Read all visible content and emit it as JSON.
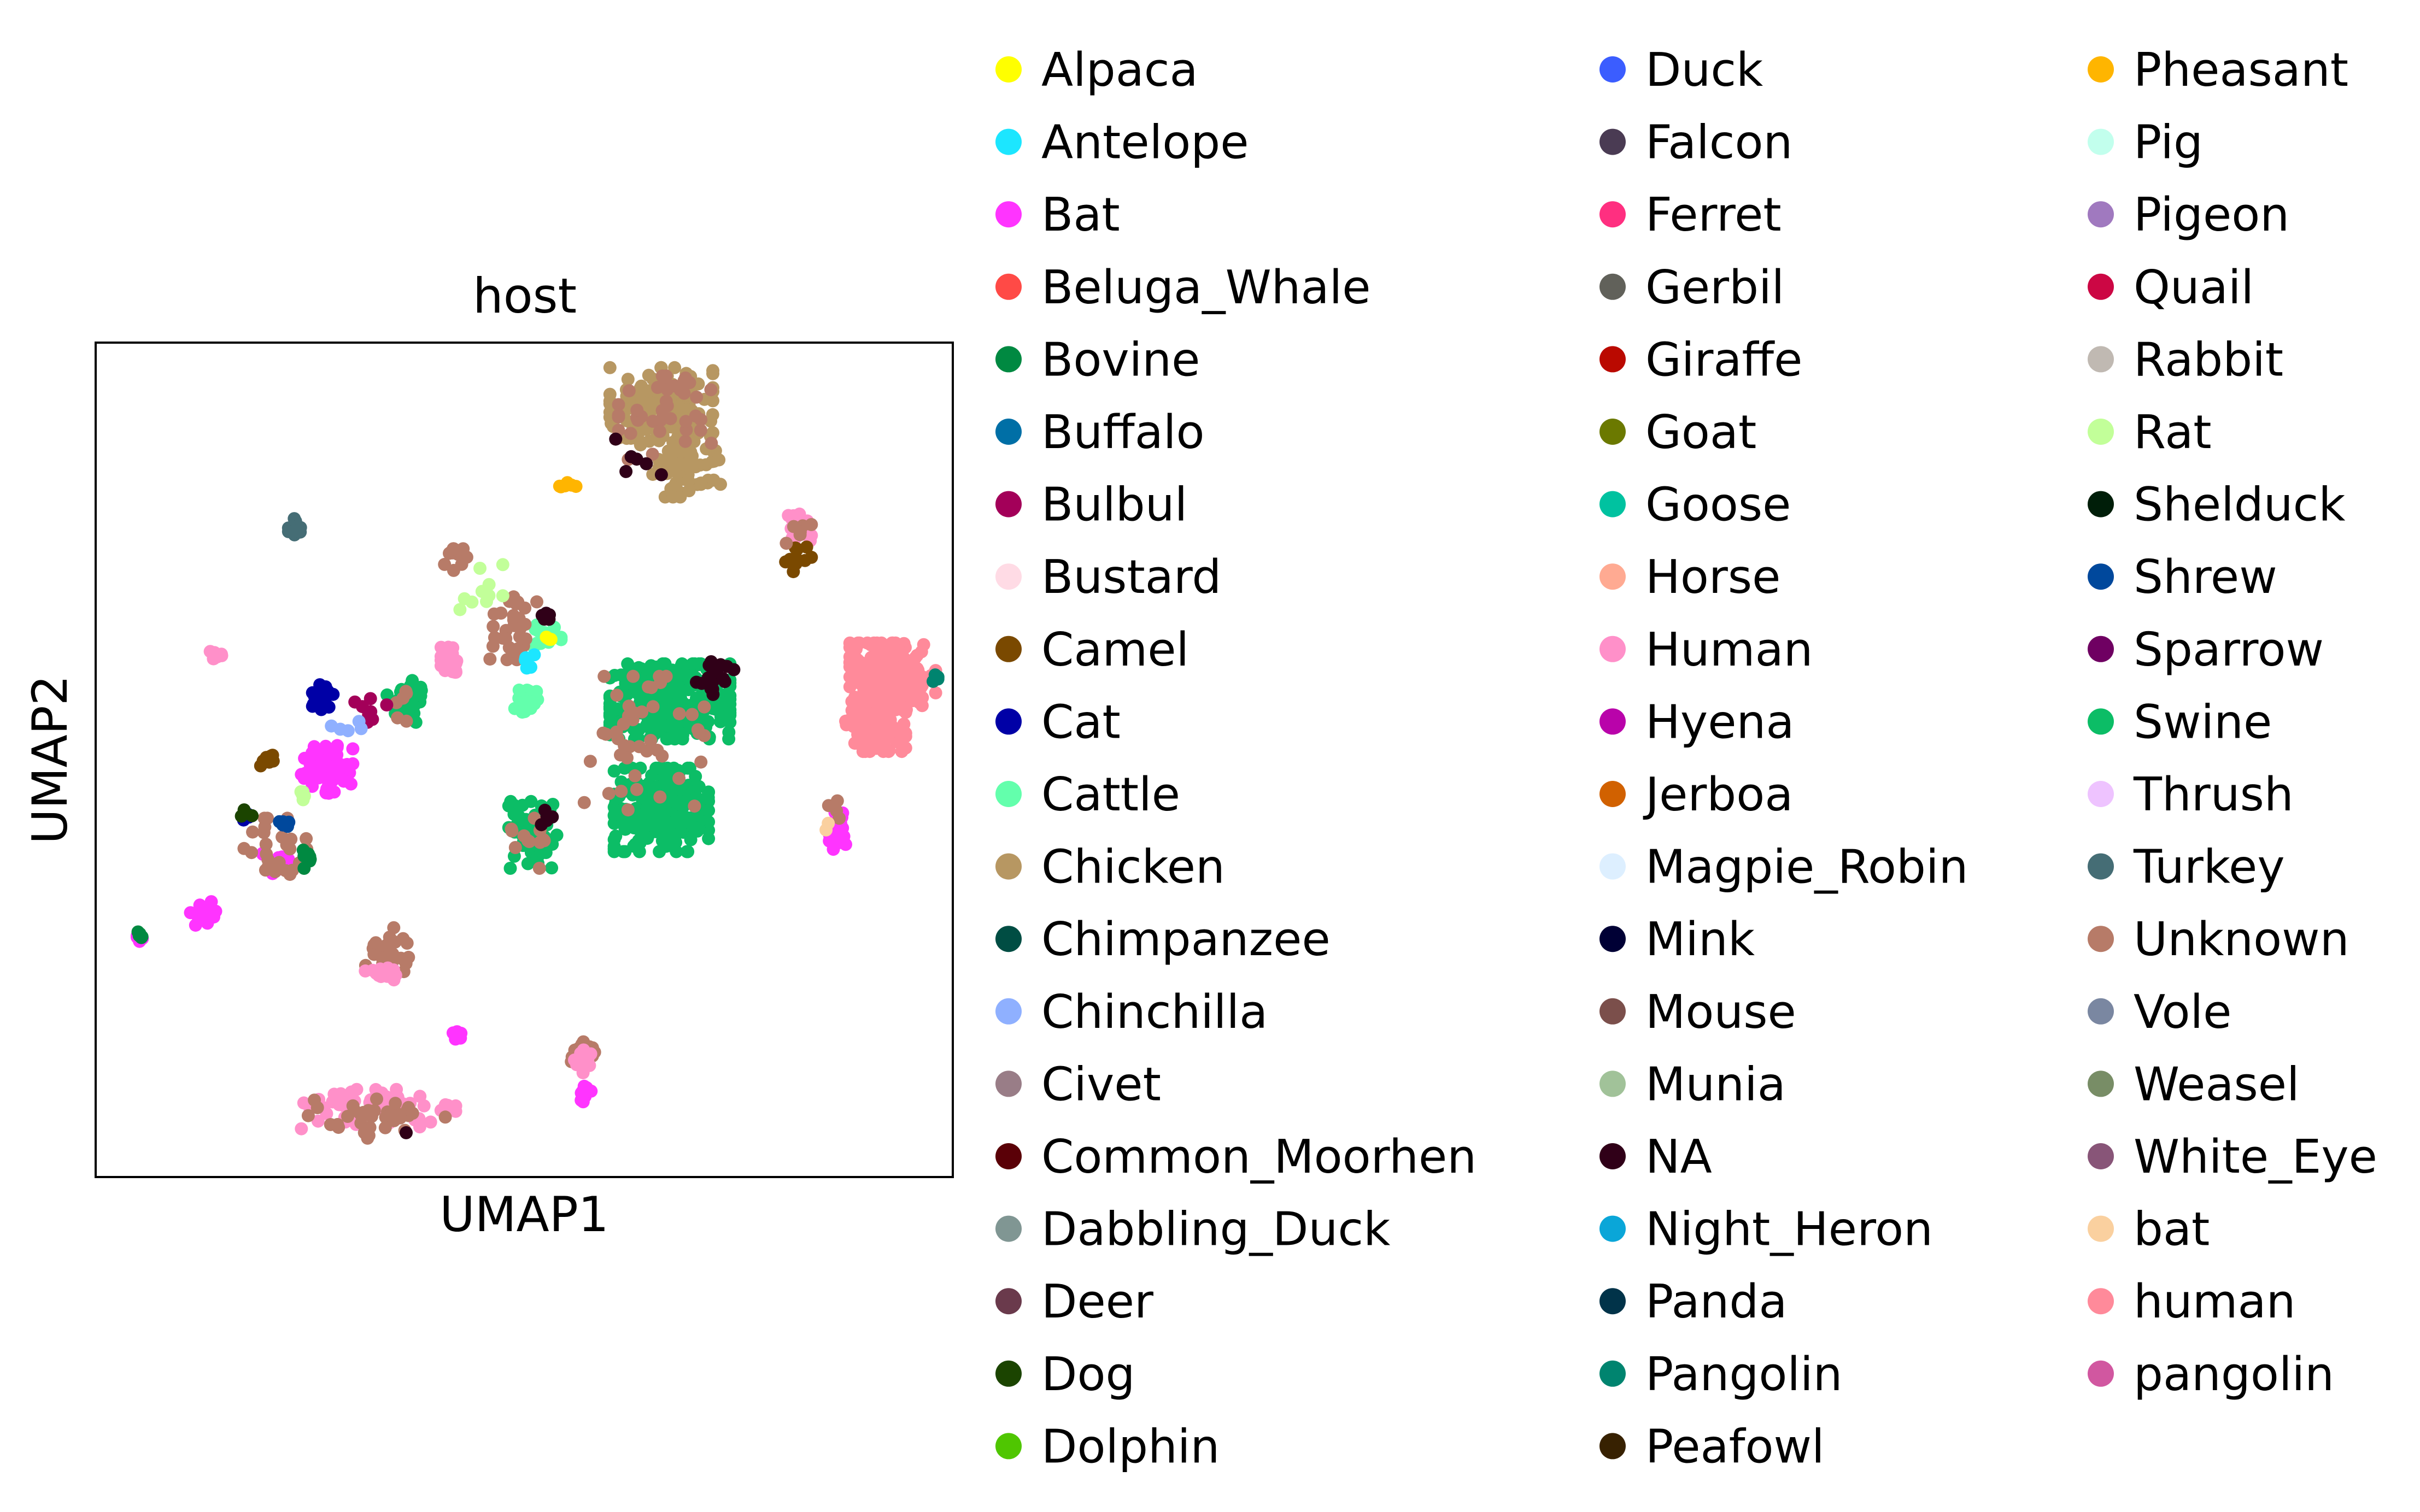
{
  "chart_data": {
    "type": "scatter",
    "title": "host",
    "xlabel": "UMAP1",
    "ylabel": "UMAP2",
    "xlim": [
      0,
      100
    ],
    "ylim": [
      0,
      100
    ],
    "grid": false,
    "ticks": "none",
    "legend_position": "right, outside plot, 3 columns",
    "categories": [
      {
        "name": "Alpaca",
        "color": "#ffff00"
      },
      {
        "name": "Antelope",
        "color": "#1ce6ff"
      },
      {
        "name": "Bat",
        "color": "#ff34ff"
      },
      {
        "name": "Beluga_Whale",
        "color": "#ff4a46"
      },
      {
        "name": "Bovine",
        "color": "#008941"
      },
      {
        "name": "Buffalo",
        "color": "#006fa6"
      },
      {
        "name": "Bulbul",
        "color": "#a30059"
      },
      {
        "name": "Bustard",
        "color": "#ffdbe5"
      },
      {
        "name": "Camel",
        "color": "#7a4900"
      },
      {
        "name": "Cat",
        "color": "#0000a6"
      },
      {
        "name": "Cattle",
        "color": "#63ffac"
      },
      {
        "name": "Chicken",
        "color": "#b79762"
      },
      {
        "name": "Chimpanzee",
        "color": "#004d43"
      },
      {
        "name": "Chinchilla",
        "color": "#8fb0ff"
      },
      {
        "name": "Civet",
        "color": "#997d87"
      },
      {
        "name": "Common_Moorhen",
        "color": "#5a0007"
      },
      {
        "name": "Dabbling_Duck",
        "color": "#809693"
      },
      {
        "name": "Deer",
        "color": "#6a3a4c"
      },
      {
        "name": "Dog",
        "color": "#1b4400"
      },
      {
        "name": "Dolphin",
        "color": "#4fc601"
      },
      {
        "name": "Duck",
        "color": "#3b5dff"
      },
      {
        "name": "Falcon",
        "color": "#4a3b53"
      },
      {
        "name": "Ferret",
        "color": "#ff2f80"
      },
      {
        "name": "Gerbil",
        "color": "#61615a"
      },
      {
        "name": "Giraffe",
        "color": "#ba0900"
      },
      {
        "name": "Goat",
        "color": "#6b7900"
      },
      {
        "name": "Goose",
        "color": "#00c2a0"
      },
      {
        "name": "Horse",
        "color": "#ffaa92"
      },
      {
        "name": "Human",
        "color": "#ff90c9"
      },
      {
        "name": "Hyena",
        "color": "#b903aa"
      },
      {
        "name": "Jerboa",
        "color": "#d16100"
      },
      {
        "name": "Magpie_Robin",
        "color": "#ddefff"
      },
      {
        "name": "Mink",
        "color": "#000035"
      },
      {
        "name": "Mouse",
        "color": "#7b4f4b"
      },
      {
        "name": "Munia",
        "color": "#a1c299"
      },
      {
        "name": "NA",
        "color": "#300018"
      },
      {
        "name": "Night_Heron",
        "color": "#0aa6d8"
      },
      {
        "name": "Panda",
        "color": "#013349"
      },
      {
        "name": "Pangolin",
        "color": "#00846f"
      },
      {
        "name": "Peafowl",
        "color": "#372101"
      },
      {
        "name": "Pheasant",
        "color": "#ffb500"
      },
      {
        "name": "Pig",
        "color": "#c2ffed"
      },
      {
        "name": "Pigeon",
        "color": "#a079bf"
      },
      {
        "name": "Quail",
        "color": "#cc0744"
      },
      {
        "name": "Rabbit",
        "color": "#c0b9b2"
      },
      {
        "name": "Rat",
        "color": "#c2ff99"
      },
      {
        "name": "Shelduck",
        "color": "#001e09"
      },
      {
        "name": "Shrew",
        "color": "#00489c"
      },
      {
        "name": "Sparrow",
        "color": "#6f0062"
      },
      {
        "name": "Swine",
        "color": "#0cbd66"
      },
      {
        "name": "Thrush",
        "color": "#eec3ff"
      },
      {
        "name": "Turkey",
        "color": "#456d75"
      },
      {
        "name": "Unknown",
        "color": "#b77b68"
      },
      {
        "name": "Vole",
        "color": "#7a87a1"
      },
      {
        "name": "Weasel",
        "color": "#788d66"
      },
      {
        "name": "White_Eye",
        "color": "#885578"
      },
      {
        "name": "bat",
        "color": "#fad09f"
      },
      {
        "name": "human",
        "color": "#ff8a9a"
      },
      {
        "name": "pangolin",
        "color": "#d157a0"
      }
    ],
    "clusters": [
      {
        "category": "Chicken",
        "center": [
          66,
          92
        ],
        "spread": [
          6,
          5
        ],
        "count": 150
      },
      {
        "category": "Chicken",
        "center": [
          69,
          85
        ],
        "spread": [
          4,
          3.5
        ],
        "count": 60
      },
      {
        "category": "Unknown",
        "center": [
          67,
          91
        ],
        "spread": [
          6,
          5
        ],
        "count": 40
      },
      {
        "category": "Pheasant",
        "center": [
          55,
          83
        ],
        "spread": [
          1.2,
          0.8
        ],
        "count": 6
      },
      {
        "category": "NA",
        "center": [
          63,
          87
        ],
        "spread": [
          3,
          3
        ],
        "count": 6
      },
      {
        "category": "Human",
        "center": [
          82,
          78
        ],
        "spread": [
          1.5,
          2
        ],
        "count": 18
      },
      {
        "category": "Camel",
        "center": [
          82,
          74
        ],
        "spread": [
          1.5,
          1.5
        ],
        "count": 12
      },
      {
        "category": "Unknown",
        "center": [
          82,
          77
        ],
        "spread": [
          1.5,
          2
        ],
        "count": 6
      },
      {
        "category": "Turkey",
        "center": [
          23.5,
          78
        ],
        "spread": [
          1,
          1.4
        ],
        "count": 14
      },
      {
        "category": "human",
        "center": [
          93,
          60
        ],
        "spread": [
          5,
          4
        ],
        "count": 260
      },
      {
        "category": "human",
        "center": [
          91,
          54
        ],
        "spread": [
          3.5,
          3
        ],
        "count": 90
      },
      {
        "category": "Pangolin",
        "center": [
          98,
          60
        ],
        "spread": [
          0.6,
          0.8
        ],
        "count": 4
      },
      {
        "category": "Bat",
        "center": [
          86.5,
          41.5
        ],
        "spread": [
          1,
          2.5
        ],
        "count": 30
      },
      {
        "category": "Unknown",
        "center": [
          86.5,
          44
        ],
        "spread": [
          1,
          1.5
        ],
        "count": 4
      },
      {
        "category": "bat",
        "center": [
          85.5,
          42
        ],
        "spread": [
          0.4,
          0.4
        ],
        "count": 2
      },
      {
        "category": "Swine",
        "center": [
          67,
          57
        ],
        "spread": [
          7,
          4.5
        ],
        "count": 320
      },
      {
        "category": "Swine",
        "center": [
          66,
          44
        ],
        "spread": [
          5.5,
          5
        ],
        "count": 230
      },
      {
        "category": "Swine",
        "center": [
          51,
          41
        ],
        "spread": [
          2.8,
          4
        ],
        "count": 65
      },
      {
        "category": "Unknown",
        "center": [
          64,
          52
        ],
        "spread": [
          7,
          8
        ],
        "count": 45
      },
      {
        "category": "NA",
        "center": [
          72,
          60
        ],
        "spread": [
          2.5,
          2.5
        ],
        "count": 16
      },
      {
        "category": "Unknown",
        "center": [
          51,
          40
        ],
        "spread": [
          2.5,
          3
        ],
        "count": 12
      },
      {
        "category": "NA",
        "center": [
          53,
          43
        ],
        "spread": [
          1,
          1
        ],
        "count": 5
      },
      {
        "category": "Cattle",
        "center": [
          50,
          57
        ],
        "spread": [
          1.6,
          1.5
        ],
        "count": 25
      },
      {
        "category": "Cattle",
        "center": [
          52.5,
          65
        ],
        "spread": [
          1.8,
          1.5
        ],
        "count": 16
      },
      {
        "category": "Unknown",
        "center": [
          49,
          66
        ],
        "spread": [
          3,
          4
        ],
        "count": 30
      },
      {
        "category": "Rat",
        "center": [
          45,
          71
        ],
        "spread": [
          2.5,
          3
        ],
        "count": 10
      },
      {
        "category": "Alpaca",
        "center": [
          53,
          64.5
        ],
        "spread": [
          1,
          1
        ],
        "count": 4
      },
      {
        "category": "Antelope",
        "center": [
          51,
          62
        ],
        "spread": [
          1.2,
          1
        ],
        "count": 5
      },
      {
        "category": "NA",
        "center": [
          53,
          67
        ],
        "spread": [
          1.5,
          1.5
        ],
        "count": 5
      },
      {
        "category": "Human",
        "center": [
          41.5,
          62
        ],
        "spread": [
          1.2,
          1.5
        ],
        "count": 20
      },
      {
        "category": "Unknown",
        "center": [
          42,
          74
        ],
        "spread": [
          1.3,
          1.3
        ],
        "count": 12
      },
      {
        "category": "Swine",
        "center": [
          36,
          57
        ],
        "spread": [
          2,
          2.5
        ],
        "count": 35
      },
      {
        "category": "Unknown",
        "center": [
          36,
          57
        ],
        "spread": [
          2,
          2.5
        ],
        "count": 6
      },
      {
        "category": "Cat",
        "center": [
          26.5,
          57.5
        ],
        "spread": [
          1.2,
          1.5
        ],
        "count": 20
      },
      {
        "category": "Bulbul",
        "center": [
          32,
          56
        ],
        "spread": [
          2.5,
          1.5
        ],
        "count": 8
      },
      {
        "category": "Chinchilla",
        "center": [
          30,
          54
        ],
        "spread": [
          2.5,
          1.5
        ],
        "count": 5
      },
      {
        "category": "Bat",
        "center": [
          27,
          49
        ],
        "spread": [
          3,
          3
        ],
        "count": 60
      },
      {
        "category": "Bat",
        "center": [
          21.5,
          37.5
        ],
        "spread": [
          2,
          1.5
        ],
        "count": 15
      },
      {
        "category": "Bat",
        "center": [
          12.5,
          31.5
        ],
        "spread": [
          1.5,
          1.5
        ],
        "count": 18
      },
      {
        "category": "Bat",
        "center": [
          5,
          28.5
        ],
        "spread": [
          0.6,
          0.6
        ],
        "count": 6
      },
      {
        "category": "Bovine",
        "center": [
          5.3,
          29.2
        ],
        "spread": [
          0.5,
          0.5
        ],
        "count": 5
      },
      {
        "category": "Unknown",
        "center": [
          21,
          39
        ],
        "spread": [
          4,
          4
        ],
        "count": 25
      },
      {
        "category": "Camel",
        "center": [
          20,
          50
        ],
        "spread": [
          1,
          1
        ],
        "count": 8
      },
      {
        "category": "Bovine",
        "center": [
          24.5,
          38.5
        ],
        "spread": [
          1,
          1.5
        ],
        "count": 8
      },
      {
        "category": "Shrew",
        "center": [
          22,
          42.5
        ],
        "spread": [
          1,
          1
        ],
        "count": 6
      },
      {
        "category": "Cat",
        "center": [
          18,
          43
        ],
        "spread": [
          1,
          1
        ],
        "count": 4
      },
      {
        "category": "Rat",
        "center": [
          24,
          46
        ],
        "spread": [
          1.5,
          1.5
        ],
        "count": 5
      },
      {
        "category": "Dog",
        "center": [
          18,
          43
        ],
        "spread": [
          1,
          1
        ],
        "count": 4
      },
      {
        "category": "Human",
        "center": [
          14,
          62.5
        ],
        "spread": [
          0.7,
          0.8
        ],
        "count": 8
      },
      {
        "category": "Unknown",
        "center": [
          34,
          27
        ],
        "spread": [
          2.5,
          3
        ],
        "count": 30
      },
      {
        "category": "Human",
        "center": [
          33,
          24.5
        ],
        "spread": [
          2,
          1
        ],
        "count": 12
      },
      {
        "category": "Human",
        "center": [
          33,
          8
        ],
        "spread": [
          9,
          2.5
        ],
        "count": 60
      },
      {
        "category": "Unknown",
        "center": [
          32,
          7
        ],
        "spread": [
          9,
          2.5
        ],
        "count": 35
      },
      {
        "category": "Bat",
        "center": [
          42.5,
          17
        ],
        "spread": [
          0.8,
          0.7
        ],
        "count": 8
      },
      {
        "category": "Unknown",
        "center": [
          57,
          15
        ],
        "spread": [
          1.5,
          1.2
        ],
        "count": 22
      },
      {
        "category": "Human",
        "center": [
          57,
          14
        ],
        "spread": [
          1.5,
          1.5
        ],
        "count": 10
      },
      {
        "category": "Bat",
        "center": [
          57,
          10
        ],
        "spread": [
          0.8,
          1.2
        ],
        "count": 12
      },
      {
        "category": "NA",
        "center": [
          36.5,
          5.5
        ],
        "spread": [
          0.3,
          0.3
        ],
        "count": 1
      }
    ]
  }
}
